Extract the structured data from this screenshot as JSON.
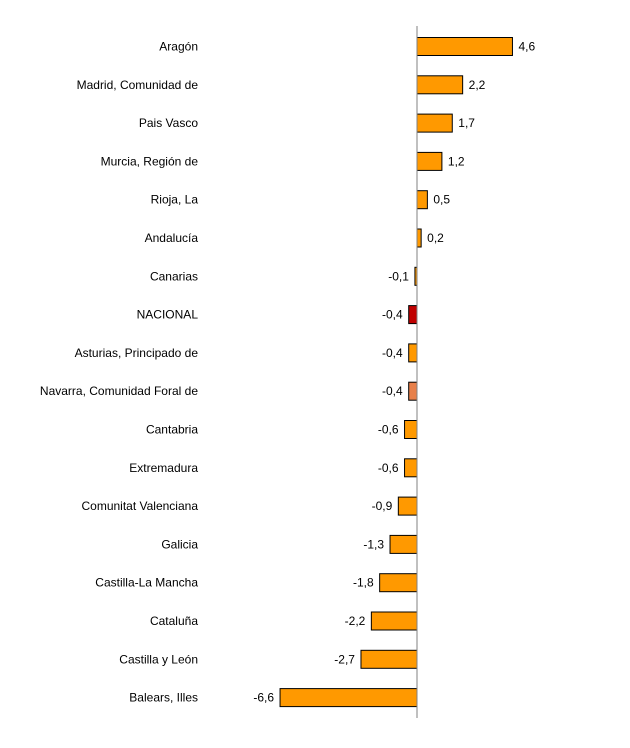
{
  "chart_data": {
    "type": "bar",
    "orientation": "horizontal",
    "categories": [
      "Aragón",
      "Madrid, Comunidad de",
      "Pais Vasco",
      "Murcia, Región de",
      "Rioja, La",
      "Andalucía",
      "Canarias",
      "NACIONAL",
      "Asturias, Principado de",
      "Navarra, Comunidad Foral de",
      "Cantabria",
      "Extremadura",
      "Comunitat Valenciana",
      "Galicia",
      "Castilla-La Mancha",
      "Cataluña",
      "Castilla y León",
      "Balears, Illes"
    ],
    "values": [
      4.6,
      2.2,
      1.7,
      1.2,
      0.5,
      0.2,
      -0.1,
      -0.4,
      -0.4,
      -0.4,
      -0.6,
      -0.6,
      -0.9,
      -1.3,
      -1.8,
      -2.2,
      -2.7,
      -6.6
    ],
    "value_labels": [
      "4,6",
      "2,2",
      "1,7",
      "1,2",
      "0,5",
      "0,2",
      "-0,1",
      "-0,4",
      "-0,4",
      "-0,4",
      "-0,6",
      "-0,6",
      "-0,9",
      "-1,3",
      "-1,8",
      "-2,2",
      "-2,7",
      "-6,6"
    ],
    "highlight": "NACIONAL",
    "colors": {
      "bar": "#FF9900",
      "highlight": "#C00000",
      "navarra": "#E8804A",
      "outline": "#000000",
      "axis": "#808080"
    },
    "title": "",
    "xlabel": "",
    "ylabel": "",
    "grid": false,
    "legend": "none"
  }
}
